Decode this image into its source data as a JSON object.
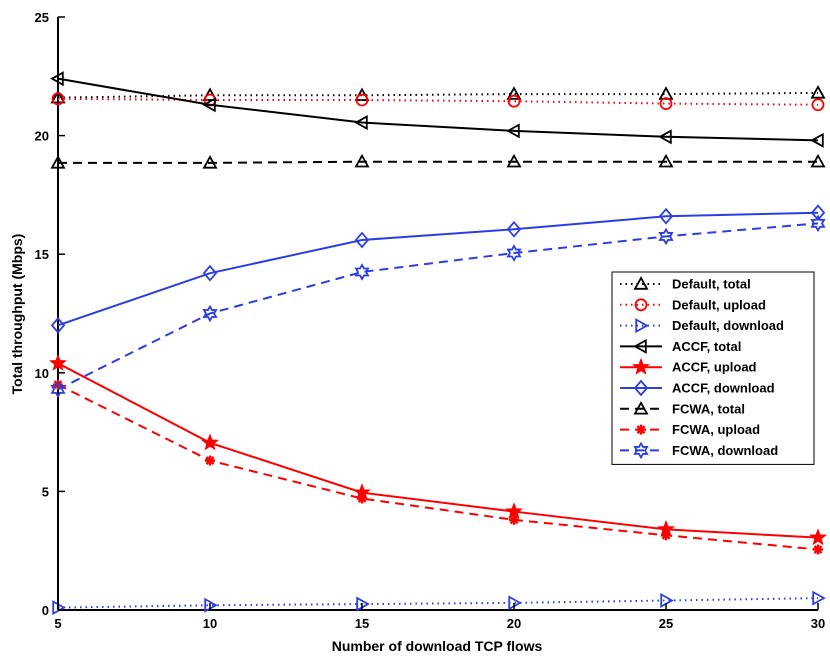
{
  "chart_data": {
    "type": "line",
    "xlabel": "Number of download TCP flows",
    "ylabel": "Total throughput (Mbps)",
    "xlim": [
      5,
      30
    ],
    "ylim": [
      0,
      25
    ],
    "x": [
      5,
      10,
      15,
      20,
      25,
      30
    ],
    "xticks": [
      "5",
      "10",
      "15",
      "20",
      "25",
      "30"
    ],
    "yticks": [
      "0",
      "5",
      "10",
      "15",
      "20",
      "25"
    ],
    "grid": false,
    "legend_position": "right",
    "series": [
      {
        "name": "Default, total",
        "values": [
          21.6,
          21.7,
          21.7,
          21.75,
          21.75,
          21.8
        ],
        "color": "#000000",
        "line": "dotted",
        "marker": "triangle-up"
      },
      {
        "name": "Default, upload",
        "values": [
          21.55,
          21.5,
          21.5,
          21.45,
          21.35,
          21.3
        ],
        "color": "#ff0000",
        "line": "dotted",
        "marker": "circle"
      },
      {
        "name": "Default, download",
        "values": [
          0.1,
          0.2,
          0.25,
          0.3,
          0.4,
          0.5
        ],
        "color": "#2b3fe0",
        "line": "dotted",
        "marker": "triangle-right"
      },
      {
        "name": "ACCF, total",
        "values": [
          22.4,
          21.3,
          20.55,
          20.2,
          19.95,
          19.8
        ],
        "color": "#000000",
        "line": "solid",
        "marker": "triangle-left"
      },
      {
        "name": "ACCF, upload",
        "values": [
          10.4,
          7.05,
          4.95,
          4.15,
          3.4,
          3.05
        ],
        "color": "#ff0000",
        "line": "solid",
        "marker": "star"
      },
      {
        "name": "ACCF, download",
        "values": [
          12.0,
          14.2,
          15.6,
          16.05,
          16.6,
          16.75
        ],
        "color": "#2b3fe0",
        "line": "solid",
        "marker": "diamond"
      },
      {
        "name": "FCWA, total",
        "values": [
          18.85,
          18.85,
          18.9,
          18.9,
          18.9,
          18.9
        ],
        "color": "#000000",
        "line": "dashed",
        "marker": "triangle-up"
      },
      {
        "name": "FCWA, upload",
        "values": [
          9.5,
          6.3,
          4.7,
          3.8,
          3.15,
          2.55
        ],
        "color": "#ff0000",
        "line": "dashed",
        "marker": "asterisk"
      },
      {
        "name": "FCWA, download",
        "values": [
          9.3,
          12.5,
          14.25,
          15.05,
          15.75,
          16.3
        ],
        "color": "#2b3fe0",
        "line": "dashed",
        "marker": "hexagram"
      }
    ]
  }
}
